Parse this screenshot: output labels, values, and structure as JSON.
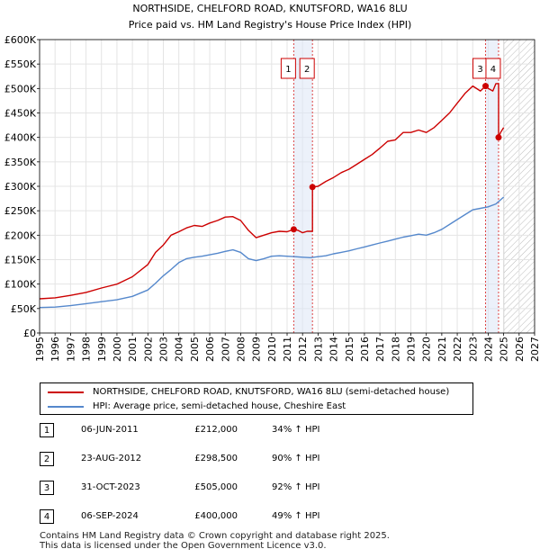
{
  "chart_data": {
    "type": "line",
    "title": "NORTHSIDE, CHELFORD ROAD, KNUTSFORD, WA16 8LU",
    "subtitle": "Price paid vs. HM Land Registry's House Price Index (HPI)",
    "xlim": [
      1995,
      2027
    ],
    "ylim": [
      0,
      600000
    ],
    "yticks": [
      0,
      50000,
      100000,
      150000,
      200000,
      250000,
      300000,
      350000,
      400000,
      450000,
      500000,
      550000,
      600000
    ],
    "ytick_labels": [
      "£0",
      "£50K",
      "£100K",
      "£150K",
      "£200K",
      "£250K",
      "£300K",
      "£350K",
      "£400K",
      "£450K",
      "£500K",
      "£550K",
      "£600K"
    ],
    "xticks": [
      1995,
      1996,
      1997,
      1998,
      1999,
      2000,
      2001,
      2002,
      2003,
      2004,
      2005,
      2006,
      2007,
      2008,
      2009,
      2010,
      2011,
      2012,
      2013,
      2014,
      2015,
      2016,
      2017,
      2018,
      2019,
      2020,
      2021,
      2022,
      2023,
      2024,
      2025,
      2026,
      2027
    ],
    "xtick_labels": [
      "1995",
      "1996",
      "1997",
      "1998",
      "1999",
      "2000",
      "2001",
      "2002",
      "2003",
      "2004",
      "2005",
      "2006",
      "2007",
      "2008",
      "2009",
      "2010",
      "2011",
      "2012",
      "2013",
      "2014",
      "2015",
      "2016",
      "2017",
      "2018",
      "2019",
      "2020",
      "2021",
      "2022",
      "2023",
      "2024",
      "2025",
      "2026",
      "2027"
    ],
    "data_end": 2025.0,
    "series": [
      {
        "name": "NORTHSIDE, CHELFORD ROAD, KNUTSFORD, WA16 8LU (semi-detached house)",
        "color": "#cc0000",
        "x": [
          1995.0,
          1996.0,
          1997.0,
          1998.0,
          1999.0,
          2000.0,
          2001.0,
          2002.0,
          2002.5,
          2003.0,
          2003.5,
          2004.0,
          2004.5,
          2005.0,
          2005.5,
          2006.0,
          2006.5,
          2007.0,
          2007.5,
          2008.0,
          2008.5,
          2009.0,
          2009.5,
          2010.0,
          2010.5,
          2011.0,
          2011.43,
          2011.43,
          2011.7,
          2012.0,
          2012.3,
          2012.64,
          2012.64,
          2013.0,
          2013.5,
          2014.0,
          2014.5,
          2015.0,
          2015.5,
          2016.0,
          2016.5,
          2017.0,
          2017.5,
          2018.0,
          2018.5,
          2019.0,
          2019.5,
          2020.0,
          2020.5,
          2021.0,
          2021.5,
          2022.0,
          2022.5,
          2023.0,
          2023.5,
          2023.83,
          2023.83,
          2024.0,
          2024.3,
          2024.5,
          2024.67,
          2024.67,
          2024.8,
          2025.0
        ],
        "values": [
          70000,
          72000,
          77000,
          83000,
          92000,
          100000,
          115000,
          140000,
          165000,
          180000,
          200000,
          207000,
          215000,
          220000,
          218000,
          225000,
          230000,
          237000,
          238000,
          230000,
          210000,
          195000,
          200000,
          205000,
          208000,
          207000,
          212000,
          212000,
          210000,
          205000,
          208000,
          208000,
          298500,
          300000,
          310000,
          318000,
          328000,
          335000,
          345000,
          355000,
          365000,
          378000,
          392000,
          395000,
          410000,
          410000,
          415000,
          410000,
          420000,
          435000,
          450000,
          470000,
          490000,
          505000,
          495000,
          505000,
          505000,
          500000,
          495000,
          510000,
          510000,
          400000,
          410000,
          420000
        ],
        "markers": [
          [
            2011.43,
            212000
          ],
          [
            2012.64,
            298500
          ],
          [
            2023.83,
            505000
          ],
          [
            2024.67,
            400000
          ]
        ]
      },
      {
        "name": "HPI: Average price, semi-detached house, Cheshire East",
        "color": "#5588cc",
        "x": [
          1995.0,
          1996.0,
          1997.0,
          1998.0,
          1999.0,
          2000.0,
          2001.0,
          2002.0,
          2002.5,
          2003.0,
          2003.5,
          2004.0,
          2004.5,
          2005.0,
          2005.5,
          2006.0,
          2006.5,
          2007.0,
          2007.5,
          2008.0,
          2008.5,
          2009.0,
          2009.5,
          2010.0,
          2010.5,
          2011.0,
          2011.5,
          2012.0,
          2012.5,
          2013.0,
          2013.5,
          2014.0,
          2014.5,
          2015.0,
          2015.5,
          2016.0,
          2016.5,
          2017.0,
          2017.5,
          2018.0,
          2018.5,
          2019.0,
          2019.5,
          2020.0,
          2020.5,
          2021.0,
          2021.5,
          2022.0,
          2022.5,
          2023.0,
          2023.5,
          2024.0,
          2024.5,
          2025.0
        ],
        "values": [
          52000,
          53000,
          56000,
          60000,
          64000,
          68000,
          75000,
          88000,
          102000,
          117000,
          130000,
          144000,
          152000,
          155000,
          157000,
          160000,
          163000,
          167000,
          170000,
          165000,
          152000,
          148000,
          152000,
          157000,
          158000,
          157000,
          156000,
          155000,
          154000,
          156000,
          158000,
          162000,
          165000,
          168000,
          172000,
          176000,
          180000,
          184000,
          188000,
          192000,
          196000,
          199000,
          202000,
          200000,
          205000,
          212000,
          222000,
          232000,
          242000,
          252000,
          255000,
          258000,
          264000,
          278000
        ]
      }
    ],
    "annotations": [
      {
        "label": "1",
        "x": 2011.43
      },
      {
        "label": "2",
        "x": 2012.64
      },
      {
        "label": "3",
        "x": 2023.83
      },
      {
        "label": "4",
        "x": 2024.67
      }
    ],
    "shaded_bands": [
      [
        2011.43,
        2012.64
      ],
      [
        2023.83,
        2024.67
      ]
    ]
  },
  "legend": {
    "items": [
      {
        "label": "NORTHSIDE, CHELFORD ROAD, KNUTSFORD, WA16 8LU (semi-detached house)",
        "color": "#cc0000"
      },
      {
        "label": "HPI: Average price, semi-detached house, Cheshire East",
        "color": "#5588cc"
      }
    ]
  },
  "transactions": [
    {
      "num": "1",
      "date": "06-JUN-2011",
      "price": "£212,000",
      "hpi": "34% ↑ HPI"
    },
    {
      "num": "2",
      "date": "23-AUG-2012",
      "price": "£298,500",
      "hpi": "90% ↑ HPI"
    },
    {
      "num": "3",
      "date": "31-OCT-2023",
      "price": "£505,000",
      "hpi": "92% ↑ HPI"
    },
    {
      "num": "4",
      "date": "06-SEP-2024",
      "price": "£400,000",
      "hpi": "49% ↑ HPI"
    }
  ],
  "footer": {
    "line1": "Contains HM Land Registry data © Crown copyright and database right 2025.",
    "line2": "This data is licensed under the Open Government Licence v3.0."
  }
}
